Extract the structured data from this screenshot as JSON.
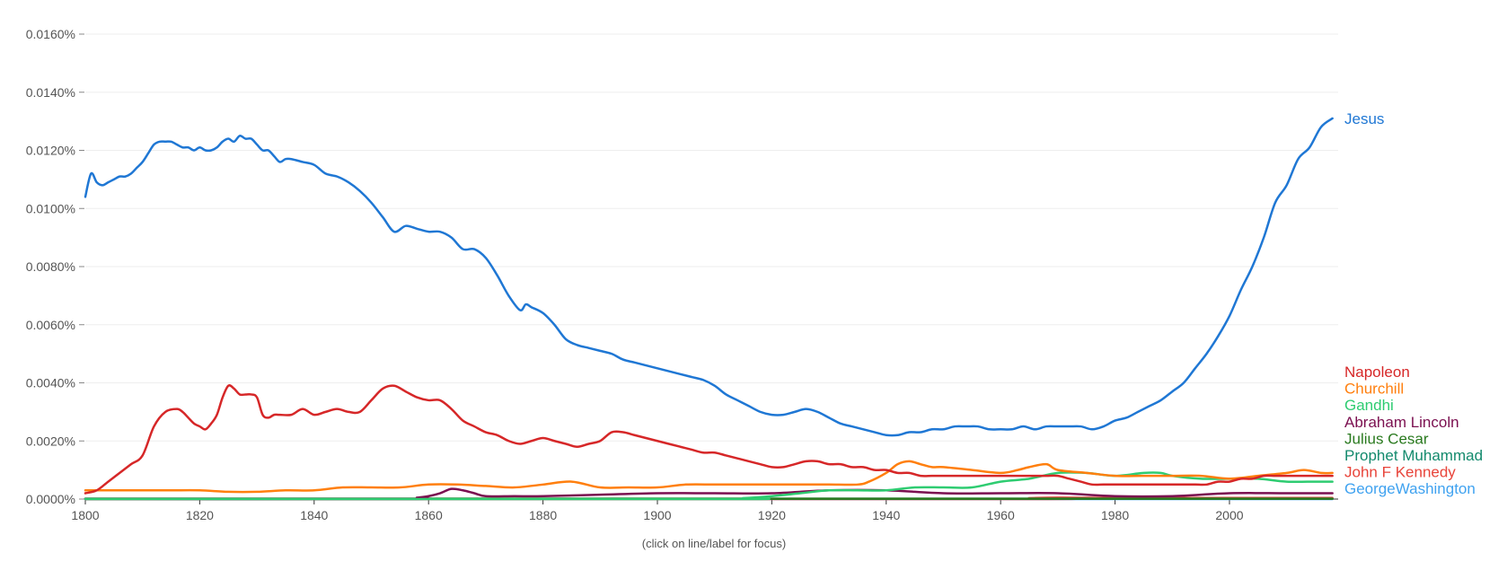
{
  "hint": "(click on line/label for focus)",
  "chart_data": {
    "type": "line",
    "title": "",
    "xlabel": "",
    "ylabel": "",
    "xlim": [
      1800,
      2019
    ],
    "ylim": [
      0,
      0.016
    ],
    "x_ticks": [
      1800,
      1820,
      1840,
      1860,
      1880,
      1900,
      1920,
      1940,
      1960,
      1980,
      2000
    ],
    "y_ticks": [
      {
        "value": 0.0,
        "label": "0.0000%"
      },
      {
        "value": 0.002,
        "label": "0.0020%"
      },
      {
        "value": 0.004,
        "label": "0.0040%"
      },
      {
        "value": 0.006,
        "label": "0.0060%"
      },
      {
        "value": 0.008,
        "label": "0.0080%"
      },
      {
        "value": 0.01,
        "label": "0.0100%"
      },
      {
        "value": 0.012,
        "label": "0.0120%"
      },
      {
        "value": 0.014,
        "label": "0.0140%"
      },
      {
        "value": 0.016,
        "label": "0.0160%"
      }
    ],
    "grid": true,
    "legend": "right-end labels",
    "series": [
      {
        "name": "Jesus",
        "color": "#1f77d4",
        "x": [
          1800,
          1801,
          1802,
          1803,
          1804,
          1805,
          1806,
          1807,
          1808,
          1809,
          1810,
          1811,
          1812,
          1813,
          1814,
          1815,
          1816,
          1817,
          1818,
          1819,
          1820,
          1821,
          1822,
          1823,
          1824,
          1825,
          1826,
          1827,
          1828,
          1829,
          1830,
          1831,
          1832,
          1833,
          1834,
          1835,
          1836,
          1838,
          1840,
          1842,
          1844,
          1846,
          1848,
          1850,
          1852,
          1854,
          1856,
          1858,
          1860,
          1862,
          1864,
          1866,
          1868,
          1870,
          1872,
          1874,
          1876,
          1877,
          1878,
          1880,
          1882,
          1884,
          1886,
          1888,
          1890,
          1892,
          1894,
          1896,
          1898,
          1900,
          1902,
          1904,
          1906,
          1908,
          1910,
          1912,
          1914,
          1916,
          1918,
          1920,
          1922,
          1924,
          1926,
          1928,
          1930,
          1932,
          1934,
          1936,
          1938,
          1940,
          1942,
          1944,
          1946,
          1948,
          1950,
          1952,
          1954,
          1956,
          1958,
          1960,
          1962,
          1964,
          1966,
          1968,
          1970,
          1972,
          1974,
          1976,
          1978,
          1980,
          1982,
          1984,
          1986,
          1988,
          1990,
          1992,
          1994,
          1996,
          1998,
          2000,
          2002,
          2004,
          2006,
          2008,
          2010,
          2012,
          2014,
          2016,
          2018
        ],
        "y": [
          0.0104,
          0.0112,
          0.0109,
          0.0108,
          0.0109,
          0.011,
          0.0111,
          0.0111,
          0.0112,
          0.0114,
          0.0116,
          0.0119,
          0.0122,
          0.0123,
          0.0123,
          0.0123,
          0.0122,
          0.0121,
          0.0121,
          0.012,
          0.0121,
          0.012,
          0.012,
          0.0121,
          0.0123,
          0.0124,
          0.0123,
          0.0125,
          0.0124,
          0.0124,
          0.0122,
          0.012,
          0.012,
          0.0118,
          0.0116,
          0.0117,
          0.0117,
          0.0116,
          0.0115,
          0.0112,
          0.0111,
          0.0109,
          0.0106,
          0.0102,
          0.0097,
          0.0092,
          0.0094,
          0.0093,
          0.0092,
          0.0092,
          0.009,
          0.0086,
          0.0086,
          0.0083,
          0.0077,
          0.007,
          0.0065,
          0.0067,
          0.0066,
          0.0064,
          0.006,
          0.0055,
          0.0053,
          0.0052,
          0.0051,
          0.005,
          0.0048,
          0.0047,
          0.0046,
          0.0045,
          0.0044,
          0.0043,
          0.0042,
          0.0041,
          0.0039,
          0.0036,
          0.0034,
          0.0032,
          0.003,
          0.0029,
          0.0029,
          0.003,
          0.0031,
          0.003,
          0.0028,
          0.0026,
          0.0025,
          0.0024,
          0.0023,
          0.0022,
          0.0022,
          0.0023,
          0.0023,
          0.0024,
          0.0024,
          0.0025,
          0.0025,
          0.0025,
          0.0024,
          0.0024,
          0.0024,
          0.0025,
          0.0024,
          0.0025,
          0.0025,
          0.0025,
          0.0025,
          0.0024,
          0.0025,
          0.0027,
          0.0028,
          0.003,
          0.0032,
          0.0034,
          0.0037,
          0.004,
          0.0045,
          0.005,
          0.0056,
          0.0063,
          0.0072,
          0.008,
          0.009,
          0.0102,
          0.0108,
          0.0117,
          0.0121,
          0.0128,
          0.0131
        ]
      },
      {
        "name": "Napoleon",
        "color": "#d62728",
        "x": [
          1800,
          1802,
          1804,
          1806,
          1808,
          1810,
          1812,
          1814,
          1816,
          1817,
          1818,
          1819,
          1820,
          1821,
          1822,
          1823,
          1824,
          1825,
          1826,
          1827,
          1828,
          1829,
          1830,
          1831,
          1832,
          1833,
          1834,
          1836,
          1838,
          1840,
          1842,
          1844,
          1846,
          1848,
          1850,
          1852,
          1854,
          1856,
          1858,
          1860,
          1862,
          1864,
          1866,
          1868,
          1870,
          1872,
          1874,
          1876,
          1878,
          1880,
          1882,
          1884,
          1886,
          1888,
          1890,
          1892,
          1894,
          1896,
          1898,
          1900,
          1902,
          1904,
          1906,
          1908,
          1910,
          1912,
          1914,
          1916,
          1918,
          1920,
          1922,
          1924,
          1926,
          1928,
          1930,
          1932,
          1934,
          1936,
          1938,
          1940,
          1942,
          1944,
          1946,
          1948,
          1950,
          1952,
          1954,
          1956,
          1958,
          1960,
          1962,
          1964,
          1966,
          1968,
          1970,
          1972,
          1974,
          1976,
          1978,
          1980,
          1982,
          1984,
          1986,
          1988,
          1990,
          1992,
          1994,
          1996,
          1998,
          2000,
          2002,
          2004,
          2006,
          2008,
          2010,
          2012,
          2014,
          2016,
          2018
        ],
        "y": [
          0.0002,
          0.0003,
          0.0006,
          0.0009,
          0.0012,
          0.0015,
          0.0025,
          0.003,
          0.0031,
          0.003,
          0.0028,
          0.0026,
          0.0025,
          0.0024,
          0.0026,
          0.0029,
          0.0035,
          0.0039,
          0.0038,
          0.0036,
          0.0036,
          0.0036,
          0.0035,
          0.0029,
          0.0028,
          0.0029,
          0.0029,
          0.0029,
          0.0031,
          0.0029,
          0.003,
          0.0031,
          0.003,
          0.003,
          0.0034,
          0.0038,
          0.0039,
          0.0037,
          0.0035,
          0.0034,
          0.0034,
          0.0031,
          0.0027,
          0.0025,
          0.0023,
          0.0022,
          0.002,
          0.0019,
          0.002,
          0.0021,
          0.002,
          0.0019,
          0.0018,
          0.0019,
          0.002,
          0.0023,
          0.0023,
          0.0022,
          0.0021,
          0.002,
          0.0019,
          0.0018,
          0.0017,
          0.0016,
          0.0016,
          0.0015,
          0.0014,
          0.0013,
          0.0012,
          0.0011,
          0.0011,
          0.0012,
          0.0013,
          0.0013,
          0.0012,
          0.0012,
          0.0011,
          0.0011,
          0.001,
          0.001,
          0.0009,
          0.0009,
          0.0008,
          0.0008,
          0.0008,
          0.0008,
          0.0008,
          0.0008,
          0.0008,
          0.0008,
          0.0008,
          0.0008,
          0.0008,
          0.0008,
          0.0008,
          0.0007,
          0.0006,
          0.0005,
          0.0005,
          0.0005,
          0.0005,
          0.0005,
          0.0005,
          0.0005,
          0.0005,
          0.0005,
          0.0005,
          0.0005,
          0.0006,
          0.0006,
          0.0007,
          0.0007,
          0.0008,
          0.0008,
          0.0008,
          0.0008,
          0.0008,
          0.0008,
          0.0008
        ]
      },
      {
        "name": "Churchill",
        "color": "#ff7f0e",
        "x": [
          1800,
          1805,
          1810,
          1815,
          1820,
          1825,
          1830,
          1835,
          1840,
          1845,
          1850,
          1855,
          1860,
          1865,
          1870,
          1875,
          1880,
          1885,
          1890,
          1895,
          1900,
          1905,
          1910,
          1915,
          1920,
          1925,
          1930,
          1935,
          1937,
          1940,
          1942,
          1944,
          1946,
          1948,
          1950,
          1955,
          1960,
          1963,
          1965,
          1968,
          1970,
          1975,
          1980,
          1985,
          1990,
          1995,
          2000,
          2005,
          2010,
          2013,
          2016,
          2018
        ],
        "y": [
          0.0003,
          0.0003,
          0.0003,
          0.0003,
          0.0003,
          0.00025,
          0.00025,
          0.0003,
          0.0003,
          0.0004,
          0.0004,
          0.0004,
          0.0005,
          0.0005,
          0.00045,
          0.0004,
          0.0005,
          0.0006,
          0.0004,
          0.0004,
          0.0004,
          0.0005,
          0.0005,
          0.0005,
          0.0005,
          0.0005,
          0.0005,
          0.0005,
          0.0006,
          0.0009,
          0.0012,
          0.0013,
          0.0012,
          0.0011,
          0.0011,
          0.001,
          0.0009,
          0.001,
          0.0011,
          0.0012,
          0.001,
          0.0009,
          0.0008,
          0.0008,
          0.0008,
          0.0008,
          0.0007,
          0.0008,
          0.0009,
          0.001,
          0.0009,
          0.0009
        ]
      },
      {
        "name": "Gandhi",
        "color": "#2ecc71",
        "x": [
          1800,
          1910,
          1915,
          1920,
          1925,
          1930,
          1935,
          1940,
          1945,
          1950,
          1955,
          1960,
          1965,
          1970,
          1975,
          1980,
          1985,
          1988,
          1990,
          1995,
          2000,
          2005,
          2010,
          2015,
          2018
        ],
        "y": [
          0,
          0,
          3e-05,
          0.0001,
          0.0002,
          0.0003,
          0.0003,
          0.0003,
          0.0004,
          0.0004,
          0.0004,
          0.0006,
          0.0007,
          0.0009,
          0.0009,
          0.0008,
          0.0009,
          0.0009,
          0.0008,
          0.0007,
          0.0007,
          0.0007,
          0.0006,
          0.0006,
          0.0006
        ]
      },
      {
        "name": "Abraham Lincoln",
        "color": "#7b1050",
        "x": [
          1800,
          1855,
          1858,
          1860,
          1862,
          1864,
          1866,
          1868,
          1870,
          1875,
          1880,
          1890,
          1900,
          1910,
          1920,
          1930,
          1940,
          1950,
          1960,
          1970,
          1980,
          1990,
          2000,
          2010,
          2018
        ],
        "y": [
          0,
          0,
          5e-05,
          0.0001,
          0.0002,
          0.00035,
          0.0003,
          0.0002,
          0.0001,
          0.0001,
          0.0001,
          0.00015,
          0.0002,
          0.0002,
          0.0002,
          0.0003,
          0.0003,
          0.0002,
          0.0002,
          0.0002,
          0.0001,
          0.0001,
          0.0002,
          0.0002,
          0.0002
        ]
      },
      {
        "name": "Julius Cesar",
        "color": "#2a7a1f",
        "x": [
          1800,
          1900,
          2000,
          2018
        ],
        "y": [
          1e-05,
          1e-05,
          1e-05,
          1e-05
        ]
      },
      {
        "name": "Prophet Muhammad",
        "color": "#138a6d",
        "x": [
          1800,
          1900,
          2000,
          2018
        ],
        "y": [
          1e-05,
          1e-05,
          1e-05,
          1e-05
        ]
      },
      {
        "name": "John F Kennedy",
        "color": "#e8443a",
        "x": [
          1800,
          1960,
          1965,
          1970,
          1980,
          1990,
          2000,
          2010,
          2018
        ],
        "y": [
          0,
          0,
          3e-05,
          5e-05,
          4e-05,
          4e-05,
          4e-05,
          4e-05,
          4e-05
        ]
      },
      {
        "name": "GeorgeWashington",
        "color": "#3fa2f0",
        "x": [
          1800,
          1900,
          2000,
          2018
        ],
        "y": [
          0,
          0,
          0,
          0
        ]
      }
    ]
  }
}
